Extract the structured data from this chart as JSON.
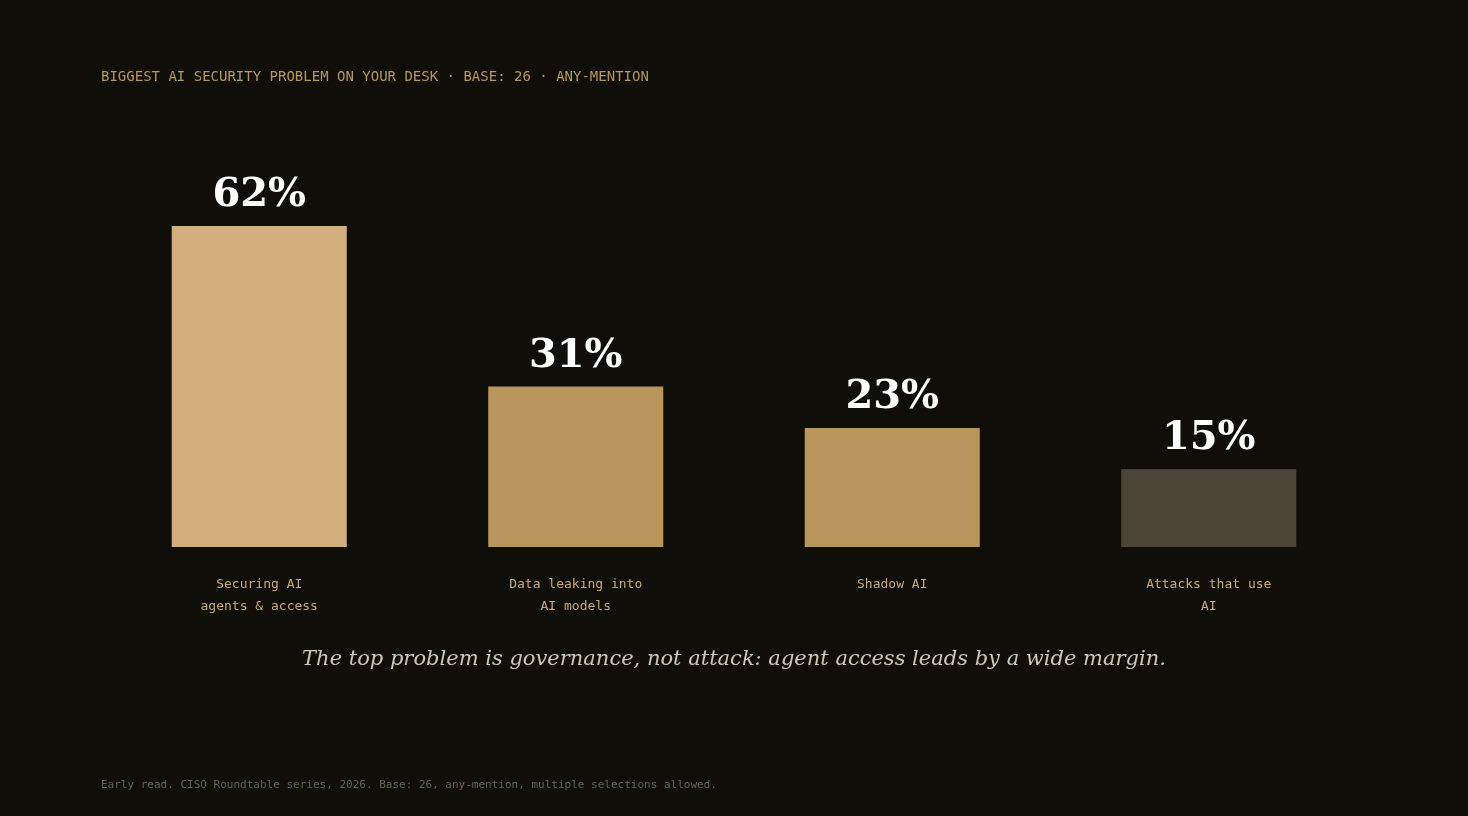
{
  "chart_data": {
    "type": "bar",
    "title": "BIGGEST AI SECURITY PROBLEM ON YOUR DESK  ·  BASE: 26  ·  ANY-MENTION",
    "categories": [
      "Securing AI agents & access",
      "Data leaking into AI models",
      "Shadow AI",
      "Attacks that use AI"
    ],
    "values": [
      62,
      31,
      23,
      15
    ],
    "colors": [
      "#d4ae7c",
      "#b8965c",
      "#b8965c",
      "#4d4438"
    ],
    "value_labels": [
      "62%",
      "31%",
      "23%",
      "15%"
    ],
    "annotations": [
      "The top problem is governance, not attack: agent access leads by a wide margin.",
      "Early read. CISO Roundtable series, 2026. Base: 26, any-mention, multiple selections allowed."
    ]
  }
}
